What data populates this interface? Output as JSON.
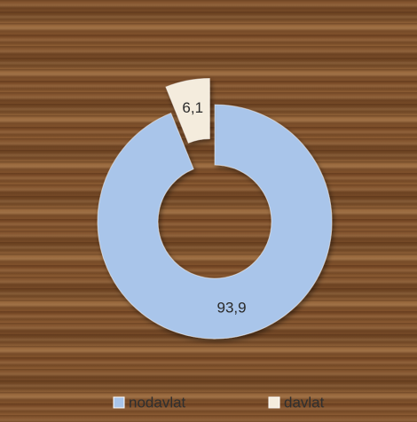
{
  "chart_data": {
    "type": "doughnut",
    "categories": [
      "nodavlat",
      "davlat"
    ],
    "values": [
      93.9,
      6.1
    ],
    "value_labels": [
      "93,9",
      "6,1"
    ],
    "colors": [
      "#a9c5ea",
      "#f4ecdd"
    ],
    "legend": "bottom"
  }
}
